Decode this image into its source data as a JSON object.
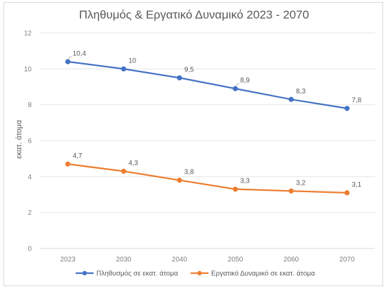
{
  "chart_data": {
    "type": "line",
    "title": "Πληθυμός & Εργατικό Δυναμικό 2023 - 2070",
    "ylabel": "εκατ. άτομα",
    "xlabel": "",
    "categories": [
      "2023",
      "2030",
      "2040",
      "2050",
      "2060",
      "2070"
    ],
    "ylim": [
      0,
      12
    ],
    "yticks": [
      "0",
      "2",
      "4",
      "6",
      "8",
      "10",
      "12"
    ],
    "grid": true,
    "legend": "bottom",
    "series": [
      {
        "name": "Πληθυσμός σε εκατ. άτομα",
        "values": [
          10.4,
          10,
          9.5,
          8.9,
          8.3,
          7.8
        ],
        "labels": [
          "10,4",
          "10",
          "9,5",
          "8,9",
          "8,3",
          "7,8"
        ],
        "color": "#4472c4"
      },
      {
        "name": "Εργατικό Δυναμικό σε εκατ. άτομα",
        "values": [
          4.7,
          4.3,
          3.8,
          3.3,
          3.2,
          3.1
        ],
        "labels": [
          "4,7",
          "4,3",
          "3,8",
          "3,3",
          "3,2",
          "3,1"
        ],
        "color": "#ed7d31"
      }
    ]
  }
}
